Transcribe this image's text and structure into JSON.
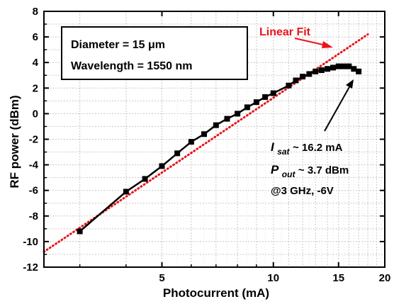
{
  "chart_data": {
    "type": "line",
    "xlabel": "Photocurrent (mA)",
    "ylabel": "RF power (dBm)",
    "xscale": "log",
    "xlim": [
      2.4,
      20
    ],
    "ylim": [
      -12,
      8
    ],
    "x_tick_labels": [
      "5",
      "10",
      "15",
      "20"
    ],
    "x_ticks": [
      5,
      10,
      15,
      20
    ],
    "y_ticks": [
      -12,
      -10,
      -8,
      -6,
      -4,
      -2,
      0,
      2,
      4,
      6,
      8
    ],
    "y_tick_labels": [
      "-12",
      "-10",
      "-8",
      "-6",
      "-4",
      "-2",
      "0",
      "2",
      "4",
      "6",
      "8"
    ],
    "grid": true,
    "series": [
      {
        "name": "",
        "style": "black line with square markers",
        "color": "#000000",
        "x": [
          3.0,
          4.0,
          4.5,
          5.0,
          5.5,
          6.0,
          6.5,
          7.0,
          7.5,
          8.0,
          8.5,
          9.0,
          9.5,
          10.0,
          11.0,
          11.5,
          12.0,
          12.5,
          13.0,
          13.5,
          14.0,
          14.5,
          15.0,
          15.5,
          16.0,
          16.5,
          17.0
        ],
        "y": [
          -9.2,
          -6.1,
          -5.1,
          -4.1,
          -3.1,
          -2.2,
          -1.6,
          -0.9,
          -0.4,
          0.0,
          0.5,
          0.9,
          1.3,
          1.6,
          2.2,
          2.6,
          2.9,
          3.1,
          3.3,
          3.4,
          3.5,
          3.6,
          3.7,
          3.7,
          3.7,
          3.5,
          3.3
        ]
      },
      {
        "name": "Linear Fit",
        "style": "red dotted line",
        "color": "#e8141b",
        "x": [
          2.4,
          18.0
        ],
        "y": [
          -10.8,
          6.2
        ]
      }
    ],
    "text_box": {
      "line1": "Diameter = 15 μm",
      "line2": "Wavelength = 1550 nm"
    },
    "fit_label": "Linear Fit",
    "annotations": {
      "isat_symbol": "I",
      "isat_sub": "sat",
      "isat_value": "~ 16.2 mA",
      "pout_symbol": "P",
      "pout_sub": "out",
      "pout_value": "~ 3.7 dBm",
      "condition": "@3 GHz, -6V"
    }
  }
}
